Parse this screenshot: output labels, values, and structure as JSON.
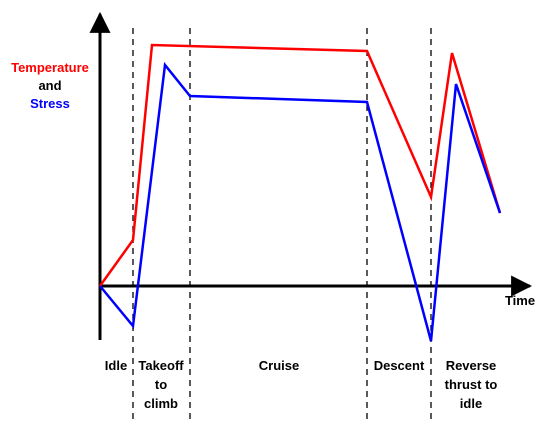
{
  "chart_data": {
    "type": "line",
    "title": "",
    "ylabel": {
      "line1": "Temperature",
      "line2": "and",
      "line3": "Stress"
    },
    "xlabel": "Time",
    "colors": {
      "temperature": "#ff0000",
      "stress": "#0000ff",
      "axis": "#000000"
    },
    "phases": [
      {
        "lines": [
          "Idle"
        ]
      },
      {
        "lines": [
          "Takeoff",
          "to",
          "climb"
        ]
      },
      {
        "lines": [
          "Cruise"
        ]
      },
      {
        "lines": [
          "Descent"
        ]
      },
      {
        "lines": [
          "Reverse",
          "thrust to",
          "idle"
        ]
      }
    ]
  }
}
